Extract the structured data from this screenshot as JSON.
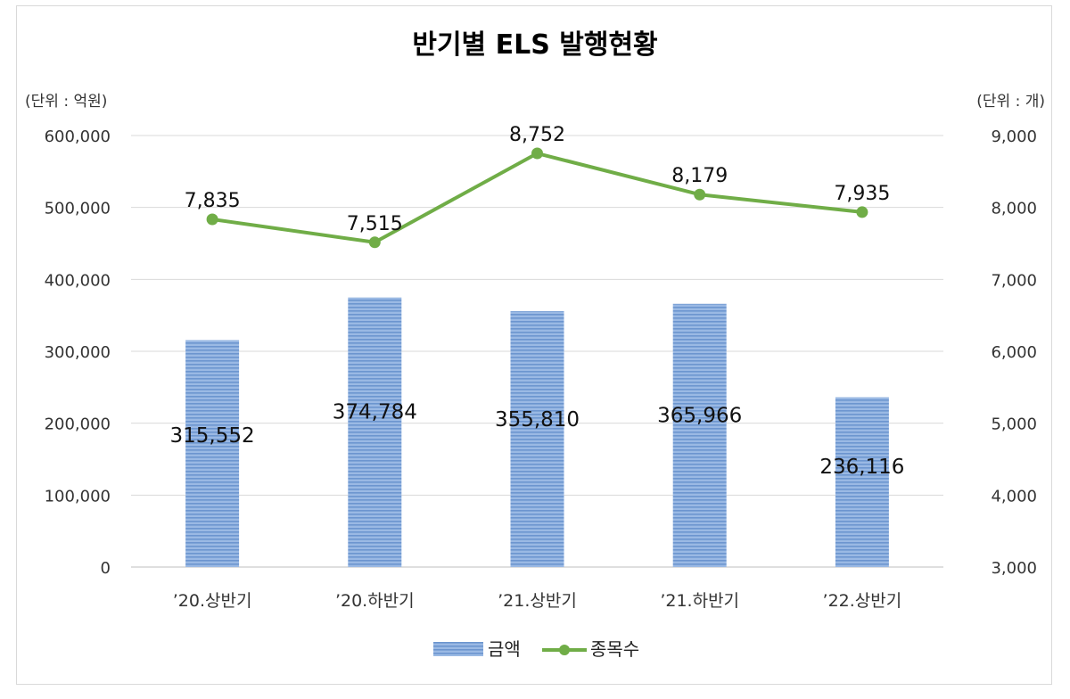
{
  "chart_data": {
    "type": "bar",
    "title": "반기별 ELS 발행현황",
    "left_unit": "(단위 : 억원)",
    "right_unit": "(단위 : 개)",
    "categories": [
      "’20.상반기",
      "’20.하반기",
      "’21.상반기",
      "’21.하반기",
      "’22.상반기"
    ],
    "series": [
      {
        "name": "금액",
        "type": "bar",
        "axis": "left",
        "color": "#7ea3d6",
        "values": [
          315552,
          374784,
          355810,
          365966,
          236116
        ],
        "labels": [
          "315,552",
          "374,784",
          "355,810",
          "365,966",
          "236,116"
        ]
      },
      {
        "name": "종목수",
        "type": "line",
        "axis": "right",
        "color": "#70ad47",
        "values": [
          7835,
          7515,
          8752,
          8179,
          7935
        ],
        "labels": [
          "7,835",
          "7,515",
          "8,752",
          "8,179",
          "7,935"
        ]
      }
    ],
    "left_axis": {
      "ylim": [
        0,
        600000
      ],
      "ticks": [
        "0",
        "100,000",
        "200,000",
        "300,000",
        "400,000",
        "500,000",
        "600,000"
      ]
    },
    "right_axis": {
      "ylim": [
        3000,
        9000
      ],
      "ticks": [
        "3,000",
        "4,000",
        "5,000",
        "6,000",
        "7,000",
        "8,000",
        "9,000"
      ]
    },
    "grid": true,
    "legend": "bottom"
  }
}
